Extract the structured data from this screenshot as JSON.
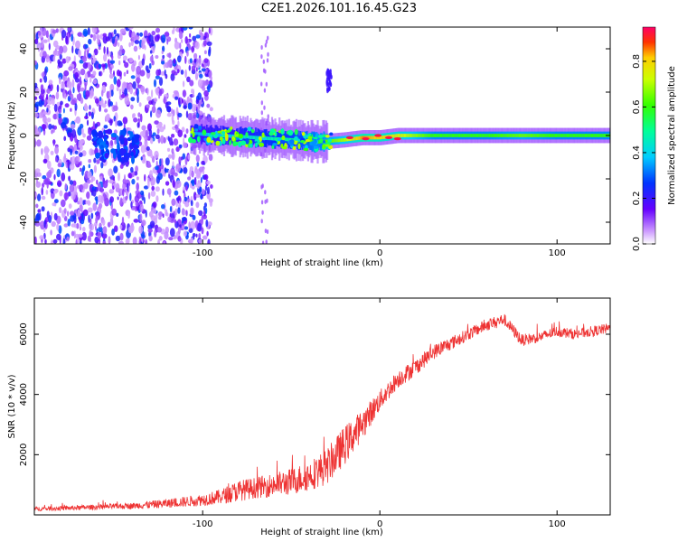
{
  "title": "C2E1.2026.101.16.45.G23",
  "chart_data": [
    {
      "type": "heatmap",
      "title": "",
      "xlabel": "Height of straight line (km)",
      "ylabel": "Frequency (Hz)",
      "xlim": [
        -195,
        130
      ],
      "ylim": [
        -50,
        50
      ],
      "xticks": [
        -100,
        0,
        100
      ],
      "xtick_labels": [
        "-100",
        "0",
        "100"
      ],
      "yticks": [
        -40,
        -20,
        0,
        20,
        40
      ],
      "ytick_labels": [
        "-40",
        "-20",
        "0",
        "20",
        "40"
      ],
      "colorbar": {
        "label": "Normalized spectral amplitude",
        "range": [
          0,
          0.95
        ],
        "ticks": [
          0,
          0.2,
          0.4,
          0.6,
          0.8
        ],
        "tick_labels": [
          "0.0",
          "0.2",
          "0.4",
          "0.6",
          "0.8"
        ]
      },
      "ridge": {
        "x": [
          -107,
          -90,
          -70,
          -50,
          -35,
          -20,
          -10,
          0,
          10,
          30,
          60,
          80,
          100,
          130
        ],
        "freq": [
          1,
          0,
          -1,
          -2,
          -3,
          -2,
          -1,
          -1,
          0,
          0,
          0,
          0,
          0,
          0
        ],
        "amplitude": [
          0.35,
          0.4,
          0.45,
          0.5,
          0.6,
          0.7,
          0.85,
          0.8,
          0.75,
          0.6,
          0.6,
          0.65,
          0.6,
          0.6
        ]
      },
      "noise_region": {
        "x": [
          -195,
          -95
        ],
        "amplitude": [
          0.05,
          0.3
        ]
      },
      "isolated_features": [
        {
          "x": [
            -67,
            -63
          ],
          "freq": [
            -50,
            48
          ],
          "amplitude": 0.1
        },
        {
          "x": [
            -30,
            -27
          ],
          "freq": [
            20,
            30
          ],
          "amplitude": 0.2
        }
      ]
    },
    {
      "type": "line",
      "title": "",
      "xlabel": "Height of straight line (km)",
      "ylabel": "SNR (10 * v/v)",
      "xlim": [
        -195,
        130
      ],
      "ylim": [
        0,
        7200
      ],
      "xticks": [
        -100,
        0,
        100
      ],
      "xtick_labels": [
        "-100",
        "0",
        "100"
      ],
      "yticks": [
        2000,
        4000,
        6000
      ],
      "ytick_labels": [
        "2000",
        "4000",
        "6000"
      ],
      "series": [
        {
          "name": "SNR",
          "color": "#ee3333",
          "x": [
            -195,
            -180,
            -160,
            -140,
            -120,
            -100,
            -90,
            -80,
            -70,
            -60,
            -50,
            -40,
            -30,
            -20,
            -10,
            0,
            10,
            20,
            30,
            40,
            50,
            60,
            70,
            80,
            90,
            100,
            110,
            120,
            130
          ],
          "values": [
            200,
            220,
            260,
            300,
            380,
            500,
            600,
            800,
            900,
            1000,
            1100,
            1300,
            1600,
            2300,
            3000,
            3800,
            4500,
            4900,
            5400,
            5700,
            6000,
            6300,
            6500,
            5800,
            5900,
            6100,
            6000,
            6100,
            6200
          ],
          "noise": [
            150,
            150,
            170,
            200,
            300,
            400,
            500,
            700,
            700,
            800,
            900,
            1000,
            1200,
            1300,
            1000,
            700,
            600,
            550,
            500,
            450,
            400,
            400,
            400,
            400,
            350,
            350,
            350,
            350,
            350
          ]
        }
      ]
    }
  ]
}
